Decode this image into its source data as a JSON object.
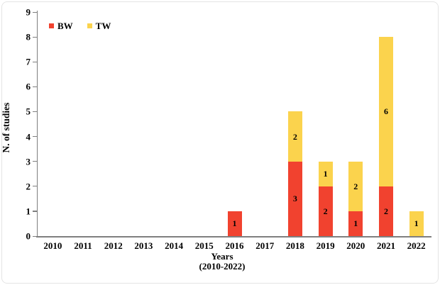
{
  "chart_data": {
    "type": "bar",
    "stacked": true,
    "categories": [
      "2010",
      "2011",
      "2012",
      "2013",
      "2014",
      "2015",
      "2016",
      "2017",
      "2018",
      "2019",
      "2020",
      "2021",
      "2022"
    ],
    "series": [
      {
        "name": "BW",
        "color": "#F1422F",
        "values": [
          0,
          0,
          0,
          0,
          0,
          0,
          1,
          0,
          3,
          2,
          1,
          2,
          0
        ]
      },
      {
        "name": "TW",
        "color": "#FBD34D",
        "values": [
          0,
          0,
          0,
          0,
          0,
          0,
          0,
          0,
          2,
          1,
          2,
          6,
          1
        ]
      }
    ],
    "ylabel": "N. of studies",
    "xlabel_line1": "Years",
    "xlabel_line2": "(2010-2022)",
    "ylim": [
      0,
      9
    ],
    "ytick_step": 1,
    "grid": false,
    "legend_position": "top-left",
    "axis_color": "#7f7f7f",
    "text_color": "#000000",
    "background_color": "#ffffff"
  }
}
